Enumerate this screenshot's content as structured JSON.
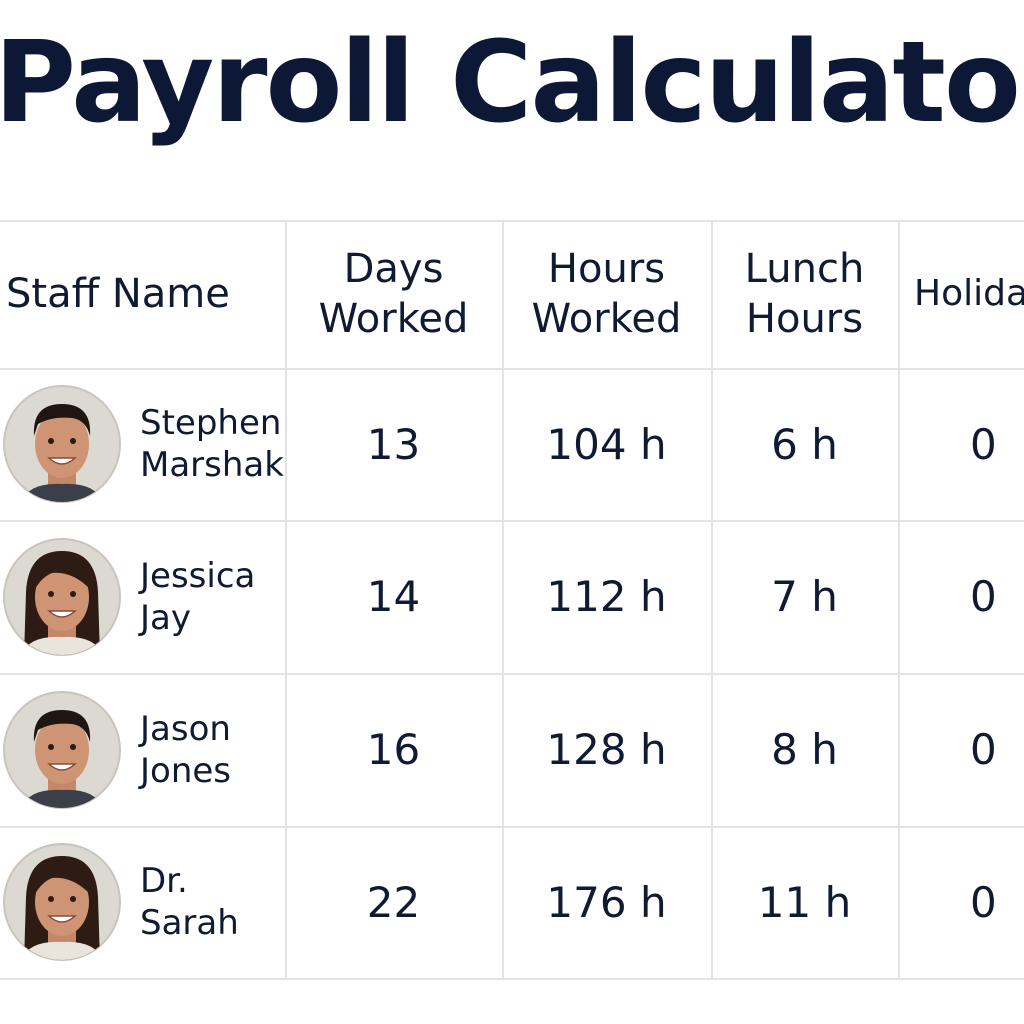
{
  "title": "Payroll Calculator",
  "table": {
    "headers": [
      "Staff Name",
      "Days Worked",
      "Hours Worked",
      "Lunch Hours",
      "Holida"
    ],
    "rows": [
      [
        "Stephen Marshak",
        "13",
        "104 h",
        "6 h",
        "0"
      ],
      [
        "Jessica Jay",
        "14",
        "112 h",
        "7 h",
        "0"
      ],
      [
        "Jason Jones",
        "16",
        "128 h",
        "8 h",
        "0"
      ],
      [
        "Dr. Sarah",
        "22",
        "176 h",
        "11 h",
        "0"
      ]
    ]
  }
}
